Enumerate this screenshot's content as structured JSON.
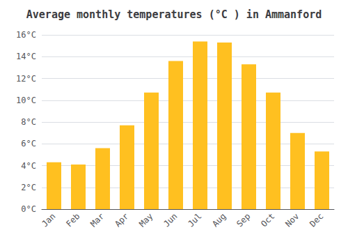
{
  "chart_data": {
    "type": "bar",
    "title": "Average monthly temperatures (°C ) in Ammanford",
    "categories": [
      "Jan",
      "Feb",
      "Mar",
      "Apr",
      "May",
      "Jun",
      "Jul",
      "Aug",
      "Sep",
      "Oct",
      "Nov",
      "Dec"
    ],
    "values": [
      4.3,
      4.1,
      5.6,
      7.7,
      10.7,
      13.6,
      15.4,
      15.3,
      13.3,
      10.7,
      7.0,
      5.3
    ],
    "color": "#FFC020",
    "ylim": [
      0,
      16
    ],
    "yticks": [
      {
        "value": 0,
        "label": "0°C"
      },
      {
        "value": 2,
        "label": "2°C"
      },
      {
        "value": 4,
        "label": "4°C"
      },
      {
        "value": 6,
        "label": "6°C"
      },
      {
        "value": 8,
        "label": "8°C"
      },
      {
        "value": 10,
        "label": "10°C"
      },
      {
        "value": 12,
        "label": "12°C"
      },
      {
        "value": 14,
        "label": "14°C"
      },
      {
        "value": 16,
        "label": "16°C"
      }
    ],
    "grid": true
  }
}
